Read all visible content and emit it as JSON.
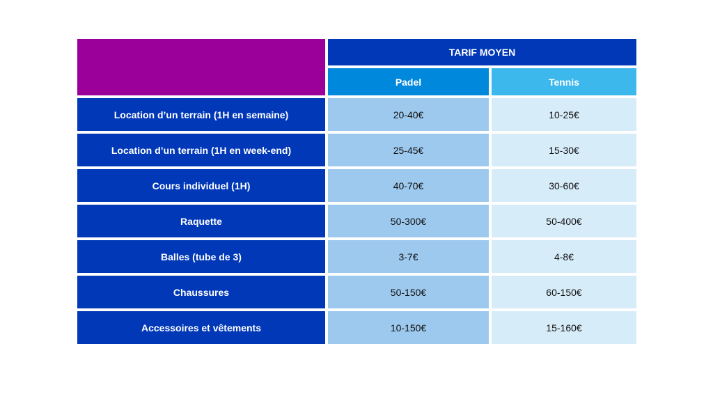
{
  "table": {
    "header": "TARIF MOYEN",
    "columns": [
      "Padel",
      "Tennis"
    ],
    "rows": [
      {
        "label": "Location d’un terrain (1H en semaine)",
        "padel": "20-40€",
        "tennis": "10-25€"
      },
      {
        "label": "Location d’un terrain (1H en week-end)",
        "padel": "25-45€",
        "tennis": "15-30€"
      },
      {
        "label": "Cours individuel (1H)",
        "padel": "40-70€",
        "tennis": "30-60€"
      },
      {
        "label": "Raquette",
        "padel": "50-300€",
        "tennis": "50-400€"
      },
      {
        "label": "Balles (tube de 3)",
        "padel": "3-7€",
        "tennis": "4-8€"
      },
      {
        "label": "Chaussures",
        "padel": "50-150€",
        "tennis": "60-150€"
      },
      {
        "label": "Accessoires et vêtements",
        "padel": "10-150€",
        "tennis": "15-160€"
      }
    ]
  },
  "colors": {
    "corner": "#9b009b",
    "header": "#0038b8",
    "padel_header": "#0088dd",
    "tennis_header": "#3cb8ec",
    "padel_cell": "#9dc9ee",
    "tennis_cell": "#d7ecf9"
  }
}
